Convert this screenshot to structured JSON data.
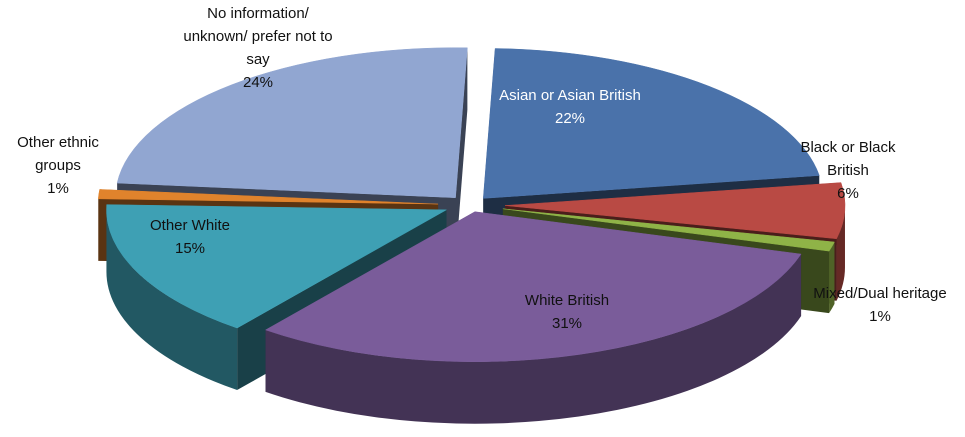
{
  "chart_data": {
    "type": "pie",
    "title": "",
    "style": "3d-exploded",
    "slices": [
      {
        "label": "Asian or Asian British",
        "value": 22,
        "percent_label": "22%",
        "color": "#4a72aa"
      },
      {
        "label": "Black or Black British",
        "value": 6,
        "percent_label": "6%",
        "color": "#b94a44"
      },
      {
        "label": "Mixed/Dual heritage",
        "value": 1,
        "percent_label": "1%",
        "color": "#8fb347"
      },
      {
        "label": "White British",
        "value": 31,
        "percent_label": "31%",
        "color": "#7a5c9a"
      },
      {
        "label": "Other White",
        "value": 15,
        "percent_label": "15%",
        "color": "#3ea0b4"
      },
      {
        "label": "Other ethnic groups",
        "value": 1,
        "percent_label": "1%",
        "color": "#e0832c"
      },
      {
        "label": "No information/ unknown/ prefer not to say",
        "value": 24,
        "percent_label": "24%",
        "color": "#91a6d1"
      }
    ],
    "label_lines": [
      [
        "Asian or Asian British",
        "22%"
      ],
      [
        "Black or Black",
        "British",
        "6%"
      ],
      [
        "Mixed/Dual heritage",
        "1%"
      ],
      [
        "White British",
        "31%"
      ],
      [
        "Other White",
        "15%"
      ],
      [
        "Other ethnic",
        "groups",
        "1%"
      ],
      [
        "No information/",
        "unknown/ prefer not to",
        "say",
        "24%"
      ]
    ]
  }
}
